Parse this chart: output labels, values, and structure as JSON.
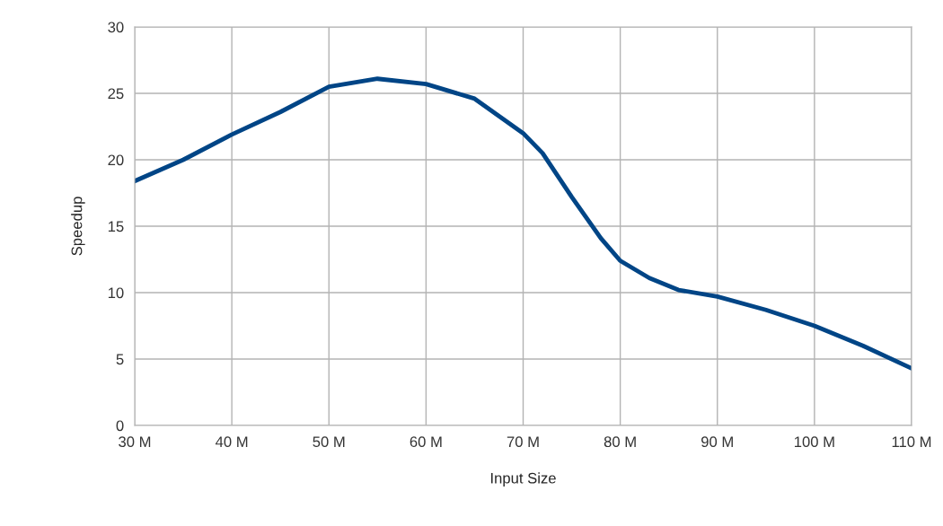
{
  "chart_data": {
    "type": "line",
    "xlabel": "Input Size",
    "ylabel": "Speedup",
    "x": [
      30,
      35,
      40,
      45,
      50,
      55,
      60,
      65,
      70,
      72,
      75,
      78,
      80,
      83,
      86,
      90,
      95,
      100,
      105,
      110
    ],
    "series": [
      {
        "color": "#004586",
        "values": [
          18.4,
          20.0,
          21.9,
          23.6,
          25.5,
          26.1,
          25.7,
          24.6,
          22.0,
          20.5,
          17.2,
          14.1,
          12.4,
          11.1,
          10.2,
          9.7,
          8.7,
          7.5,
          6.0,
          4.3
        ]
      }
    ],
    "xlim": [
      30,
      110
    ],
    "ylim": [
      0,
      30
    ],
    "xticks": [
      {
        "value": 30,
        "label": "30 M"
      },
      {
        "value": 40,
        "label": "40 M"
      },
      {
        "value": 50,
        "label": "50 M"
      },
      {
        "value": 60,
        "label": "60 M"
      },
      {
        "value": 70,
        "label": "70 M"
      },
      {
        "value": 80,
        "label": "80 M"
      },
      {
        "value": 90,
        "label": "90 M"
      },
      {
        "value": 100,
        "label": "100 M"
      },
      {
        "value": 110,
        "label": "110 M"
      }
    ],
    "yticks": [
      0,
      5,
      10,
      15,
      20,
      25,
      30
    ],
    "grid": true,
    "legend": false,
    "marker": "none",
    "line_style": "solid"
  }
}
